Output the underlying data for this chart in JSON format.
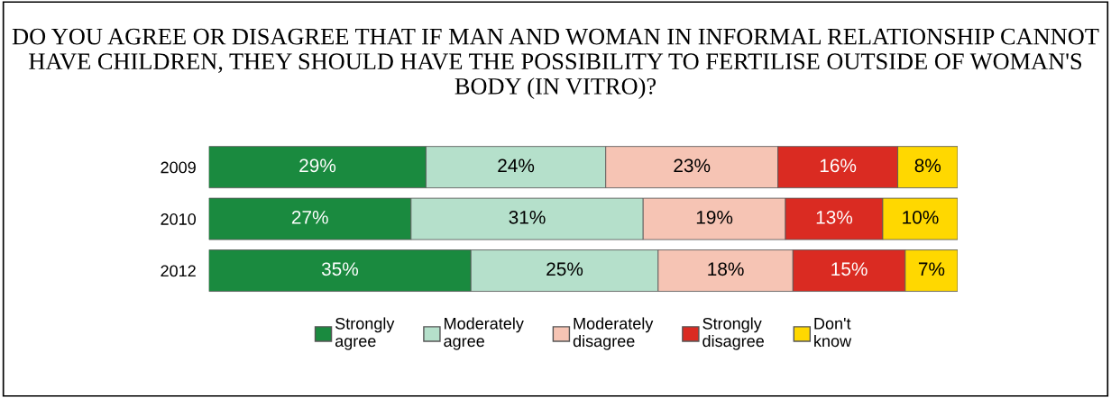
{
  "chart_data": {
    "type": "bar",
    "orientation": "horizontal",
    "stacked": true,
    "legend": "bottom",
    "grid": false,
    "title": "DO YOU AGREE OR DISAGREE THAT IF MAN AND WOMAN IN INFORMAL RELATIONSHIP CANNOT HAVE CHILDREN, THEY SHOULD HAVE THE POSSIBILITY TO FERTILISE OUTSIDE OF WOMAN'S BODY (IN VITRO)?",
    "categories": [
      "2009",
      "2010",
      "2012"
    ],
    "series": [
      {
        "name": "Strongly agree",
        "color": "#1a8a3f",
        "values": [
          29,
          27,
          35
        ],
        "value_labels": [
          "29%",
          "27%",
          "35%"
        ]
      },
      {
        "name": "Moderately agree",
        "color": "#b5e0cb",
        "values": [
          24,
          31,
          25
        ],
        "value_labels": [
          "24%",
          "31%",
          "25%"
        ]
      },
      {
        "name": "Moderately disagree",
        "color": "#f6c4b4",
        "values": [
          23,
          19,
          18
        ],
        "value_labels": [
          "23%",
          "19%",
          "18%"
        ]
      },
      {
        "name": "Strongly disagree",
        "color": "#da2b22",
        "values": [
          16,
          13,
          15
        ],
        "value_labels": [
          "16%",
          "13%",
          "15%"
        ]
      },
      {
        "name": "Don't know",
        "color": "#ffd800",
        "values": [
          8,
          10,
          7
        ],
        "value_labels": [
          "8%",
          "10%",
          "7%"
        ]
      }
    ]
  }
}
